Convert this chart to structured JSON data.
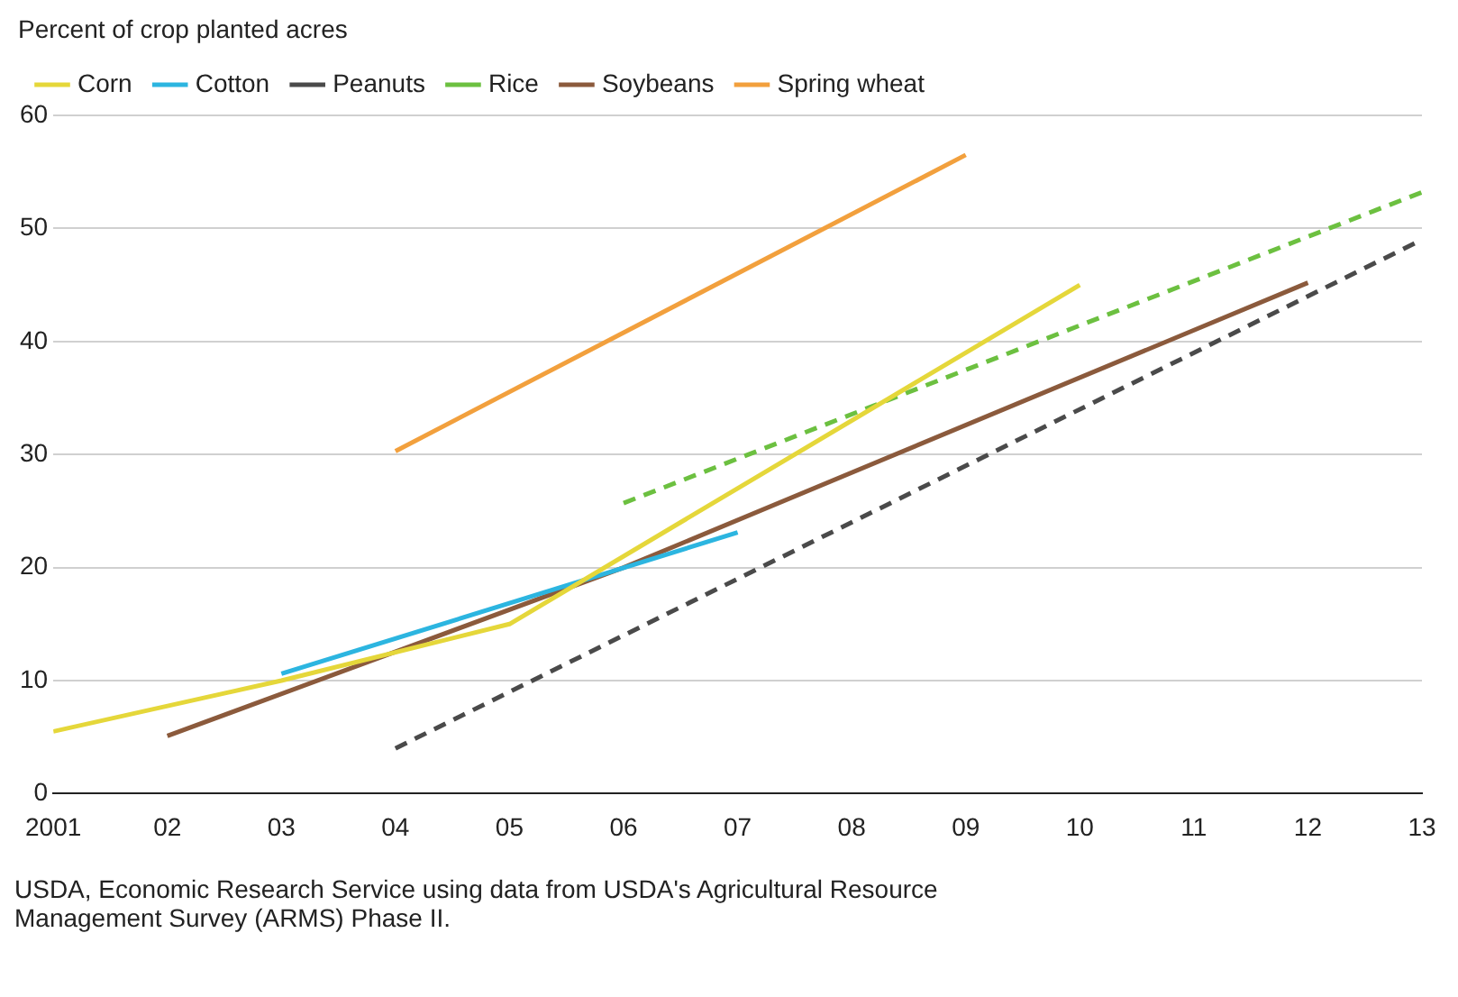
{
  "chart_data": {
    "type": "line",
    "ylabel": "Percent of crop planted acres",
    "xlim": [
      2001,
      2013
    ],
    "xticks": [
      {
        "value": 2001,
        "label": "2001"
      },
      {
        "value": 2002,
        "label": "02"
      },
      {
        "value": 2003,
        "label": "03"
      },
      {
        "value": 2004,
        "label": "04"
      },
      {
        "value": 2005,
        "label": "05"
      },
      {
        "value": 2006,
        "label": "06"
      },
      {
        "value": 2007,
        "label": "07"
      },
      {
        "value": 2008,
        "label": "08"
      },
      {
        "value": 2009,
        "label": "09"
      },
      {
        "value": 2010,
        "label": "10"
      },
      {
        "value": 2011,
        "label": "11"
      },
      {
        "value": 2012,
        "label": "12"
      },
      {
        "value": 2013,
        "label": "13"
      }
    ],
    "ylim": [
      0,
      60
    ],
    "yticks": [
      0,
      10,
      20,
      30,
      40,
      50,
      60
    ],
    "grid": "y",
    "legend": "top left",
    "marker": "none",
    "series": [
      {
        "name": "Corn",
        "color": "#e5d73a",
        "x": [
          2001,
          2003,
          2005,
          2010
        ],
        "values": [
          5.5,
          10,
          15,
          45
        ],
        "line_style": "solid"
      },
      {
        "name": "Cotton",
        "color": "#2cb5e0",
        "x": [
          2003,
          2007
        ],
        "values": [
          10.6,
          23.1
        ],
        "line_style": "solid"
      },
      {
        "name": "Peanuts",
        "color": "#4a4a4a",
        "x": [
          2004,
          2013
        ],
        "values": [
          4,
          49
        ],
        "line_style": "dashed"
      },
      {
        "name": "Rice",
        "color": "#6cc040",
        "x": [
          2006,
          2013
        ],
        "values": [
          25.7,
          53.2
        ],
        "line_style": "dashed"
      },
      {
        "name": "Soybeans",
        "color": "#8b5a3c",
        "x": [
          2002,
          2006,
          2012
        ],
        "values": [
          5.1,
          20,
          45.2
        ],
        "line_style": "solid"
      },
      {
        "name": "Spring wheat",
        "color": "#f2a03d",
        "x": [
          2004,
          2009
        ],
        "values": [
          30.3,
          56.5
        ],
        "line_style": "solid"
      }
    ],
    "annotations": [
      "USDA, Economic Research Service using data from USDA's Agricultural Resource Management Survey (ARMS) Phase II."
    ]
  }
}
